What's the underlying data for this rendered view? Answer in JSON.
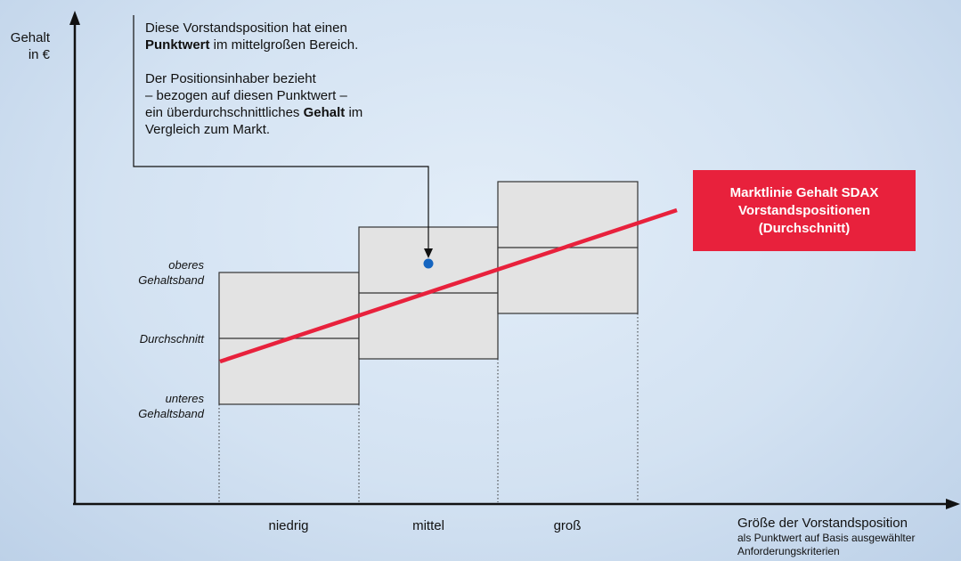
{
  "y_axis": {
    "label_line1": "Gehalt",
    "label_line2": "in €"
  },
  "band_labels": {
    "upper_line1": "oberes",
    "upper_line2": "Gehaltsband",
    "middle": "Durchschnitt",
    "lower_line1": "unteres",
    "lower_line2": "Gehaltsband"
  },
  "callout": {
    "line1": "Diese Vorstandsposition hat einen",
    "line2_bold": "Punktwert",
    "line2_rest": " im mittelgroßen Bereich.",
    "line3": "Der Positionsinhaber bezieht",
    "line4": "– bezogen auf diesen Punktwert –",
    "line5_pre": "ein überdurchschnittliches ",
    "line5_bold": "Gehalt",
    "line5_post": " im",
    "line6": "Vergleich zum Markt."
  },
  "market_line": {
    "line1": "Marktlinie Gehalt SDAX",
    "line2": "Vorstandspositionen",
    "line3": "(Durchschnitt)"
  },
  "categories": [
    "niedrig",
    "mittel",
    "groß"
  ],
  "x_axis": {
    "title": "Größe der Vorstandsposition",
    "subtitle_line1": "als Punktwert auf Basis ausgewählter",
    "subtitle_line2": "Anforderungskriterien"
  },
  "colors": {
    "market_line": "#e8213c",
    "point": "#1565c0",
    "band_fill": "#e3e3e3"
  }
}
